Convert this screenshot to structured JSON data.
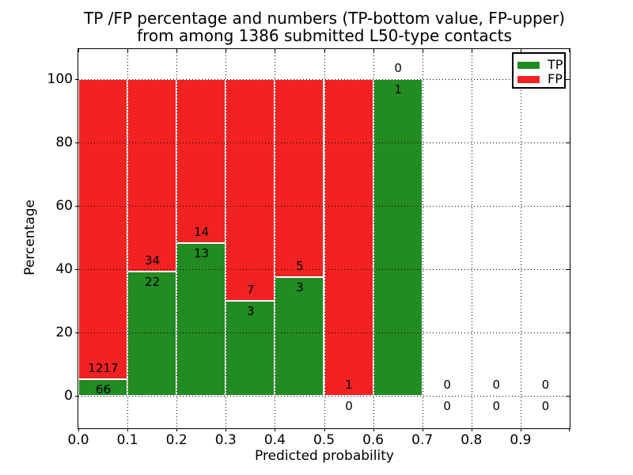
{
  "figure": {
    "title_line1": "TP /FP percentage and numbers (TP-bottom value, FP-upper)",
    "title_line2": "from among 1386 submitted L50-type contacts"
  },
  "axes": {
    "xlabel": "Predicted probability",
    "ylabel": "Percentage",
    "xtick_labels": [
      "0.0",
      "0.1",
      "0.2",
      "0.3",
      "0.4",
      "0.5",
      "0.6",
      "0.7",
      "0.8",
      "0.9"
    ],
    "ytick_labels": [
      "0",
      "20",
      "40",
      "60",
      "80",
      "100"
    ]
  },
  "legend": {
    "position": "upper right",
    "items": [
      {
        "label": "TP",
        "color": "#228b22"
      },
      {
        "label": "FP",
        "color": "#f32222"
      }
    ]
  },
  "chart_data": {
    "type": "bar",
    "stacked": true,
    "normalized": "percent",
    "title": "TP /FP percentage and numbers (TP-bottom value, FP-upper) from among 1386 submitted L50-type contacts",
    "xlabel": "Predicted probability",
    "ylabel": "Percentage",
    "total_submitted_contacts": 1386,
    "bin_edges": [
      0.0,
      0.1,
      0.2,
      0.3,
      0.4,
      0.5,
      0.6,
      0.7,
      0.8,
      0.9,
      1.0
    ],
    "categories": [
      "0.0-0.1",
      "0.1-0.2",
      "0.2-0.3",
      "0.3-0.4",
      "0.4-0.5",
      "0.5-0.6",
      "0.6-0.7",
      "0.7-0.8",
      "0.8-0.9",
      "0.9-1.0"
    ],
    "series": [
      {
        "name": "TP",
        "color": "#228b22",
        "counts": [
          66,
          22,
          13,
          3,
          3,
          0,
          1,
          0,
          0,
          0
        ]
      },
      {
        "name": "FP",
        "color": "#f32222",
        "counts": [
          1217,
          34,
          14,
          7,
          5,
          1,
          0,
          0,
          0,
          0
        ]
      }
    ],
    "tp_percent_by_bin": [
      5.1,
      39.3,
      48.1,
      30.0,
      37.5,
      0.0,
      100.0,
      0.0,
      0.0,
      0.0
    ],
    "annotation_rule": "FP count printed above TP count at each bin's TP/FP boundary",
    "xlim": [
      0.0,
      1.0
    ],
    "ylim": [
      -10,
      110
    ],
    "yticks": [
      0,
      20,
      40,
      60,
      80,
      100
    ],
    "xticks": [
      0.0,
      0.1,
      0.2,
      0.3,
      0.4,
      0.5,
      0.6,
      0.7,
      0.8,
      0.9,
      1.0
    ],
    "grid": {
      "style": "dotted",
      "color": "#000000",
      "above_bars": true
    },
    "bar_edge_color": "#ffffff",
    "legend_position": "upper right"
  }
}
